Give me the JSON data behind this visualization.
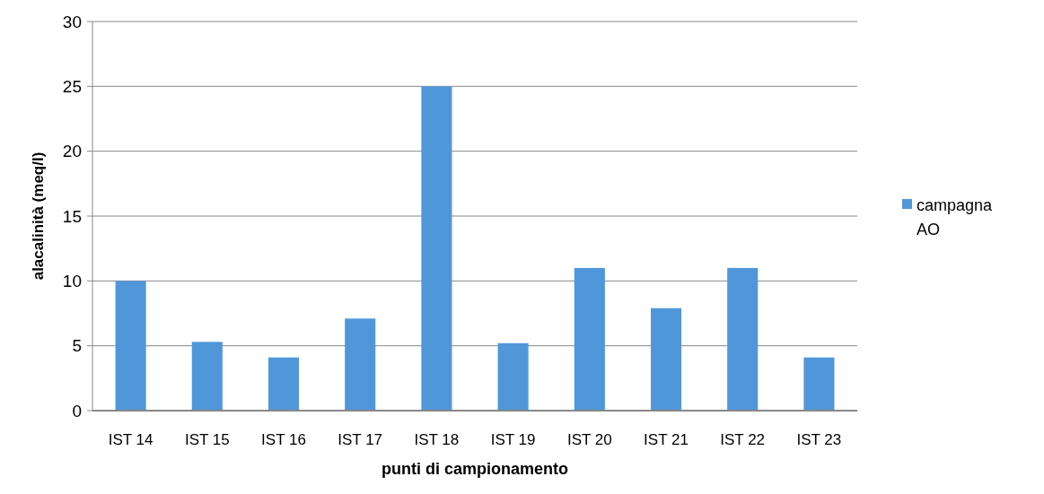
{
  "chart_data": {
    "type": "bar",
    "xlabel": "punti di campionamento",
    "ylabel": "alacalinità (meq/l)",
    "categories": [
      "IST 14",
      "IST 15",
      "IST 16",
      "IST 17",
      "IST 18",
      "IST 19",
      "IST 20",
      "IST 21",
      "IST 22",
      "IST 23"
    ],
    "series": [
      {
        "name": "campagna AO",
        "color": "#5097da",
        "values": [
          10,
          5.3,
          4.1,
          7.1,
          25,
          5.2,
          11,
          7.9,
          11,
          4.1
        ]
      }
    ],
    "ylim": [
      0,
      30
    ],
    "yticks": [
      0,
      5,
      10,
      15,
      20,
      25,
      30
    ],
    "grid": "y",
    "legend": "right"
  }
}
